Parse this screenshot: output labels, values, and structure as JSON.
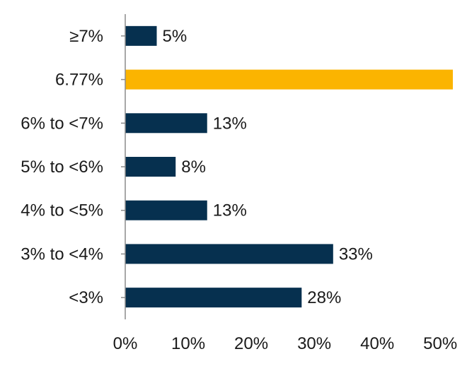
{
  "chart_data": {
    "type": "bar",
    "orientation": "horizontal",
    "categories": [
      "≥7%",
      "6.77%",
      "6% to <7%",
      "5% to <6%",
      "4% to <5%",
      "3% to <4%",
      "<3%"
    ],
    "values": [
      5,
      52,
      13,
      8,
      13,
      33,
      28
    ],
    "data_labels": [
      "5%",
      "",
      "13%",
      "8%",
      "13%",
      "33%",
      "28%"
    ],
    "bar_colors": [
      "#06304f",
      "#fbb400",
      "#06304f",
      "#06304f",
      "#06304f",
      "#06304f",
      "#06304f"
    ],
    "x_ticks": [
      0,
      10,
      20,
      30,
      40,
      50
    ],
    "x_tick_labels": [
      "0%",
      "10%",
      "20%",
      "30%",
      "40%",
      "50%"
    ],
    "xlim": [
      0,
      52
    ],
    "grid": false,
    "title": "",
    "xlabel": "",
    "ylabel": ""
  }
}
